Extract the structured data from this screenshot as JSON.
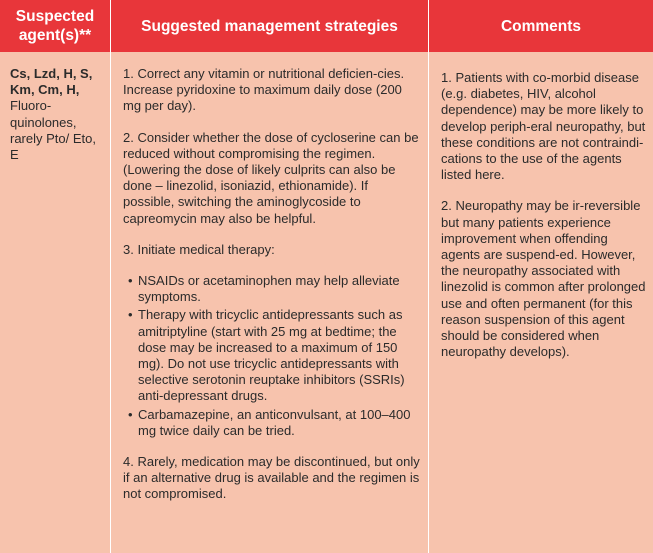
{
  "headers": {
    "agents": "Suspected agent(s)**",
    "strategies": "Suggested management strategies",
    "comments": "Comments"
  },
  "agents": {
    "bold": "Cs, Lzd, H, S, Km, Cm, H,",
    "rest": "Fluoro-quinolones, rarely Pto/ Eto, E"
  },
  "strategies": {
    "item1": "1. Correct any vitamin or nutritional deficien-cies. Increase pyridoxine to maximum daily dose (200 mg per day).",
    "item2": "2. Consider whether the dose of cycloserine can be reduced without compromising the regimen. (Lowering the dose of likely culprits can also be done – linezolid, isoniazid, ethionamide). If possible, switching the aminoglycoside to capreomycin may also be helpful.",
    "item3_intro": "3. Initiate medical therapy:",
    "item3_bullets": [
      "NSAIDs or acetaminophen may help alleviate symptoms.",
      "Therapy with tricyclic antidepressants such as amitriptyline (start with 25 mg at bedtime; the dose may be increased to a maximum of 150 mg). Do not use tricyclic antidepressants with selective serotonin reuptake inhibitors (SSRIs) anti-depressant drugs.",
      "Carbamazepine, an anticonvulsant, at 100–400 mg twice daily can be tried."
    ],
    "item4": "4. Rarely, medication may be discontinued, but only if an alternative drug is available and the regimen is not compromised."
  },
  "comments": {
    "item1": "1. Patients with co-morbid disease (e.g. diabetes, HIV, alcohol dependence) may be more likely to develop periph-eral neuropathy, but these conditions are not contraindi-cations to the use of the agents listed here.",
    "item2": "2. Neuropathy may be ir-reversible but many patients experience improvement when offending agents are suspend-ed. However, the neuropathy associated with linezolid is common after prolonged use and often permanent (for this reason suspension of this agent should be considered when neuropathy develops)."
  },
  "bullet_glyph": "•",
  "colors": {
    "header_bg": "#e8363a",
    "body_bg": "#f7c3ad",
    "header_text": "#ffffff",
    "body_text": "#2b2b2b"
  }
}
